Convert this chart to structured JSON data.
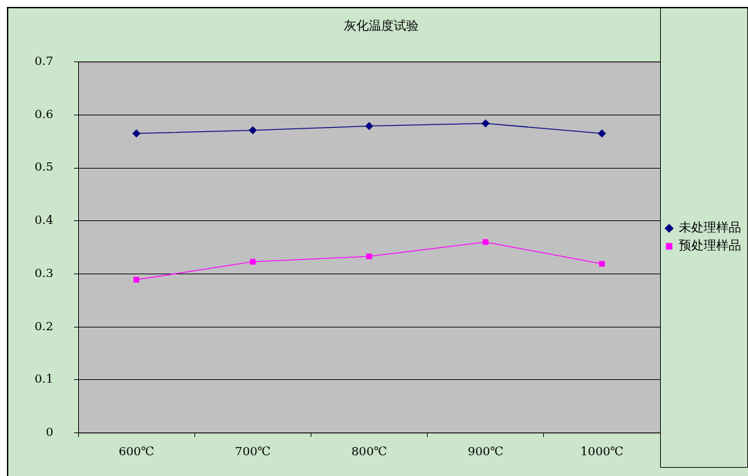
{
  "chart_data": {
    "type": "line",
    "title": "灰化温度试验",
    "categories": [
      "600℃",
      "700℃",
      "800℃",
      "900℃",
      "1000℃"
    ],
    "series": [
      {
        "name": "未处理样品",
        "color": "#000080",
        "marker": "diamond",
        "values": [
          0.565,
          0.571,
          0.579,
          0.584,
          0.565
        ]
      },
      {
        "name": "预处理样品",
        "color": "#ff00ff",
        "marker": "square",
        "values": [
          0.289,
          0.323,
          0.333,
          0.36,
          0.319
        ]
      }
    ],
    "ylim": [
      0,
      0.7
    ],
    "yticks": [
      0,
      0.1,
      0.2,
      0.3,
      0.4,
      0.5,
      0.6,
      0.7
    ],
    "grid": "y",
    "legend": "right",
    "line_style": "solid"
  }
}
